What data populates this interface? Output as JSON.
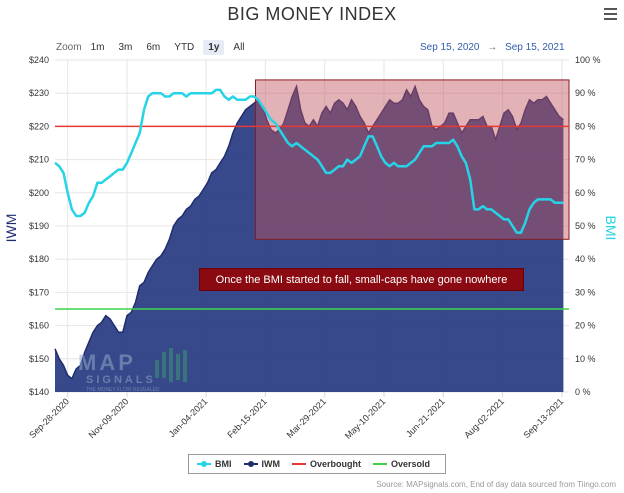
{
  "header": {
    "title": "BIG MONEY INDEX",
    "zoom_label": "Zoom",
    "zoom_buttons": [
      "1m",
      "3m",
      "6m",
      "YTD",
      "1y",
      "All"
    ],
    "zoom_selected": "1y",
    "range_from": "Sep 15, 2020",
    "range_arrow": "→",
    "range_to": "Sep 15, 2021",
    "menu_icon": "hamburger-menu-icon"
  },
  "annotation": "Once the BMI started to fall, small-caps have gone nowhere",
  "source": "Source: MAPsignals.com, End of day data sourced from Tiingo.com",
  "logo": {
    "text": "MAP",
    "sub": "SIGNALS",
    "tag": "THE MONEY FLOW REVEALED"
  },
  "legend": [
    "BMI",
    "IWM",
    "Overbought",
    "Oversold"
  ],
  "colors": {
    "bmi": "#25d4e6",
    "iwm": "#1f2d6e",
    "iwm_fill": "#2c3f85",
    "overbought": "#e53935",
    "oversold": "#3fd24a",
    "highlight_fill": "#c2545d",
    "accent": "#335cad"
  },
  "chart_data": {
    "type": "line",
    "title": "BIG MONEY INDEX",
    "x_tick_labels": [
      "Sep-28-2020",
      "Nov-09-2020",
      "Jan-04-2021",
      "Feb-15-2021",
      "Mar-29-2021",
      "May-10-2021",
      "Jun-21-2021",
      "Aug-02-2021",
      "Sep-13-2021"
    ],
    "x_tick_index": [
      9,
      51,
      107,
      149,
      191,
      233,
      275,
      317,
      359
    ],
    "x_range": [
      0,
      364
    ],
    "y_left": {
      "label": "IWM",
      "range": [
        140,
        240
      ],
      "ticks": [
        "$140",
        "$150",
        "$160",
        "$170",
        "$180",
        "$190",
        "$200",
        "$210",
        "$220",
        "$230",
        "$240"
      ]
    },
    "y_right": {
      "label": "BMI",
      "range": [
        0,
        100
      ],
      "ticks": [
        "0 %",
        "10 %",
        "20 %",
        "30 %",
        "40 %",
        "50 %",
        "60 %",
        "70 %",
        "80 %",
        "90 %",
        "100 %"
      ]
    },
    "overbought": 80,
    "oversold": 25,
    "highlight_box": {
      "x_start_index": 142,
      "x_end_index": 364,
      "top_percent": 94,
      "bottom_percent": 46
    },
    "grid": true,
    "series": [
      {
        "name": "BMI",
        "axis": "right",
        "points": [
          [
            0,
            69
          ],
          [
            3,
            68
          ],
          [
            6,
            66
          ],
          [
            9,
            60
          ],
          [
            12,
            55
          ],
          [
            15,
            53
          ],
          [
            18,
            53
          ],
          [
            21,
            54
          ],
          [
            24,
            57
          ],
          [
            27,
            59
          ],
          [
            30,
            63
          ],
          [
            33,
            63
          ],
          [
            36,
            64
          ],
          [
            39,
            65
          ],
          [
            42,
            66
          ],
          [
            45,
            67
          ],
          [
            48,
            67
          ],
          [
            51,
            69
          ],
          [
            54,
            72
          ],
          [
            57,
            75
          ],
          [
            60,
            78
          ],
          [
            63,
            85
          ],
          [
            66,
            89
          ],
          [
            69,
            90
          ],
          [
            72,
            90
          ],
          [
            75,
            90
          ],
          [
            78,
            89
          ],
          [
            81,
            89
          ],
          [
            84,
            90
          ],
          [
            87,
            90
          ],
          [
            90,
            90
          ],
          [
            93,
            89
          ],
          [
            96,
            90
          ],
          [
            99,
            90
          ],
          [
            102,
            90
          ],
          [
            105,
            90
          ],
          [
            108,
            90
          ],
          [
            111,
            90
          ],
          [
            114,
            91
          ],
          [
            117,
            91
          ],
          [
            120,
            89
          ],
          [
            123,
            88
          ],
          [
            126,
            89
          ],
          [
            129,
            88
          ],
          [
            132,
            88
          ],
          [
            135,
            88
          ],
          [
            138,
            89
          ],
          [
            141,
            89
          ],
          [
            144,
            88
          ],
          [
            147,
            86
          ],
          [
            150,
            84
          ],
          [
            153,
            82
          ],
          [
            156,
            81
          ],
          [
            159,
            79
          ],
          [
            162,
            77
          ],
          [
            165,
            75
          ],
          [
            168,
            74
          ],
          [
            171,
            75
          ],
          [
            174,
            74
          ],
          [
            177,
            73
          ],
          [
            180,
            72
          ],
          [
            183,
            71
          ],
          [
            186,
            70
          ],
          [
            189,
            68
          ],
          [
            192,
            66
          ],
          [
            195,
            66
          ],
          [
            198,
            67
          ],
          [
            201,
            68
          ],
          [
            204,
            68
          ],
          [
            207,
            70
          ],
          [
            210,
            69
          ],
          [
            213,
            70
          ],
          [
            216,
            71
          ],
          [
            219,
            74
          ],
          [
            222,
            77
          ],
          [
            225,
            77
          ],
          [
            228,
            74
          ],
          [
            231,
            71
          ],
          [
            234,
            69
          ],
          [
            237,
            68
          ],
          [
            240,
            69
          ],
          [
            243,
            68
          ],
          [
            246,
            68
          ],
          [
            249,
            68
          ],
          [
            252,
            69
          ],
          [
            255,
            70
          ],
          [
            258,
            72
          ],
          [
            261,
            74
          ],
          [
            264,
            74
          ],
          [
            267,
            74
          ],
          [
            270,
            75
          ],
          [
            273,
            75
          ],
          [
            276,
            75
          ],
          [
            279,
            75
          ],
          [
            282,
            76
          ],
          [
            285,
            74
          ],
          [
            288,
            71
          ],
          [
            291,
            69
          ],
          [
            294,
            64
          ],
          [
            297,
            55
          ],
          [
            300,
            55
          ],
          [
            303,
            56
          ],
          [
            306,
            55
          ],
          [
            309,
            55
          ],
          [
            312,
            54
          ],
          [
            315,
            53
          ],
          [
            318,
            52
          ],
          [
            321,
            52
          ],
          [
            324,
            50
          ],
          [
            327,
            48
          ],
          [
            330,
            48
          ],
          [
            333,
            51
          ],
          [
            336,
            55
          ],
          [
            339,
            57
          ],
          [
            342,
            58
          ],
          [
            345,
            58
          ],
          [
            348,
            58
          ],
          [
            351,
            58
          ],
          [
            354,
            57
          ],
          [
            357,
            57
          ],
          [
            360,
            57
          ]
        ]
      },
      {
        "name": "IWM",
        "axis": "left",
        "points": [
          [
            0,
            153
          ],
          [
            3,
            150
          ],
          [
            6,
            148
          ],
          [
            9,
            145
          ],
          [
            12,
            144
          ],
          [
            15,
            147
          ],
          [
            18,
            148
          ],
          [
            21,
            152
          ],
          [
            24,
            155
          ],
          [
            27,
            158
          ],
          [
            30,
            160
          ],
          [
            33,
            161
          ],
          [
            36,
            163
          ],
          [
            39,
            162
          ],
          [
            42,
            160
          ],
          [
            45,
            158
          ],
          [
            48,
            158
          ],
          [
            51,
            163
          ],
          [
            54,
            164
          ],
          [
            57,
            167
          ],
          [
            60,
            172
          ],
          [
            63,
            173
          ],
          [
            66,
            176
          ],
          [
            69,
            178
          ],
          [
            72,
            180
          ],
          [
            75,
            181
          ],
          [
            78,
            183
          ],
          [
            81,
            186
          ],
          [
            84,
            190
          ],
          [
            87,
            192
          ],
          [
            90,
            193
          ],
          [
            93,
            195
          ],
          [
            96,
            196
          ],
          [
            99,
            198
          ],
          [
            102,
            199
          ],
          [
            105,
            201
          ],
          [
            108,
            203
          ],
          [
            111,
            206
          ],
          [
            114,
            207
          ],
          [
            117,
            209
          ],
          [
            120,
            211
          ],
          [
            123,
            214
          ],
          [
            126,
            218
          ],
          [
            129,
            221
          ],
          [
            132,
            223
          ],
          [
            135,
            225
          ],
          [
            138,
            226
          ],
          [
            141,
            227
          ],
          [
            144,
            228
          ],
          [
            147,
            226
          ],
          [
            150,
            222
          ],
          [
            153,
            219
          ],
          [
            156,
            218
          ],
          [
            159,
            219
          ],
          [
            162,
            221
          ],
          [
            165,
            225
          ],
          [
            168,
            229
          ],
          [
            171,
            232
          ],
          [
            174,
            225
          ],
          [
            177,
            221
          ],
          [
            180,
            220
          ],
          [
            183,
            222
          ],
          [
            186,
            220
          ],
          [
            189,
            224
          ],
          [
            192,
            226
          ],
          [
            195,
            224
          ],
          [
            198,
            227
          ],
          [
            201,
            228
          ],
          [
            204,
            227
          ],
          [
            207,
            225
          ],
          [
            210,
            228
          ],
          [
            213,
            226
          ],
          [
            216,
            223
          ],
          [
            219,
            221
          ],
          [
            222,
            218
          ],
          [
            225,
            220
          ],
          [
            228,
            222
          ],
          [
            231,
            224
          ],
          [
            234,
            226
          ],
          [
            237,
            228
          ],
          [
            240,
            227
          ],
          [
            243,
            227
          ],
          [
            246,
            228
          ],
          [
            249,
            231
          ],
          [
            252,
            229
          ],
          [
            255,
            232
          ],
          [
            258,
            228
          ],
          [
            261,
            226
          ],
          [
            264,
            225
          ],
          [
            267,
            220
          ],
          [
            270,
            219
          ],
          [
            273,
            220
          ],
          [
            276,
            221
          ],
          [
            279,
            224
          ],
          [
            282,
            224
          ],
          [
            285,
            221
          ],
          [
            288,
            218
          ],
          [
            291,
            220
          ],
          [
            294,
            222
          ],
          [
            297,
            222
          ],
          [
            300,
            222
          ],
          [
            303,
            223
          ],
          [
            306,
            220
          ],
          [
            309,
            220
          ],
          [
            312,
            216
          ],
          [
            315,
            220
          ],
          [
            318,
            224
          ],
          [
            321,
            225
          ],
          [
            324,
            223
          ],
          [
            327,
            219
          ],
          [
            330,
            221
          ],
          [
            333,
            225
          ],
          [
            336,
            228
          ],
          [
            339,
            227
          ],
          [
            342,
            228
          ],
          [
            345,
            228
          ],
          [
            348,
            229
          ],
          [
            351,
            227
          ],
          [
            354,
            225
          ],
          [
            357,
            223
          ],
          [
            360,
            222
          ]
        ]
      }
    ]
  }
}
